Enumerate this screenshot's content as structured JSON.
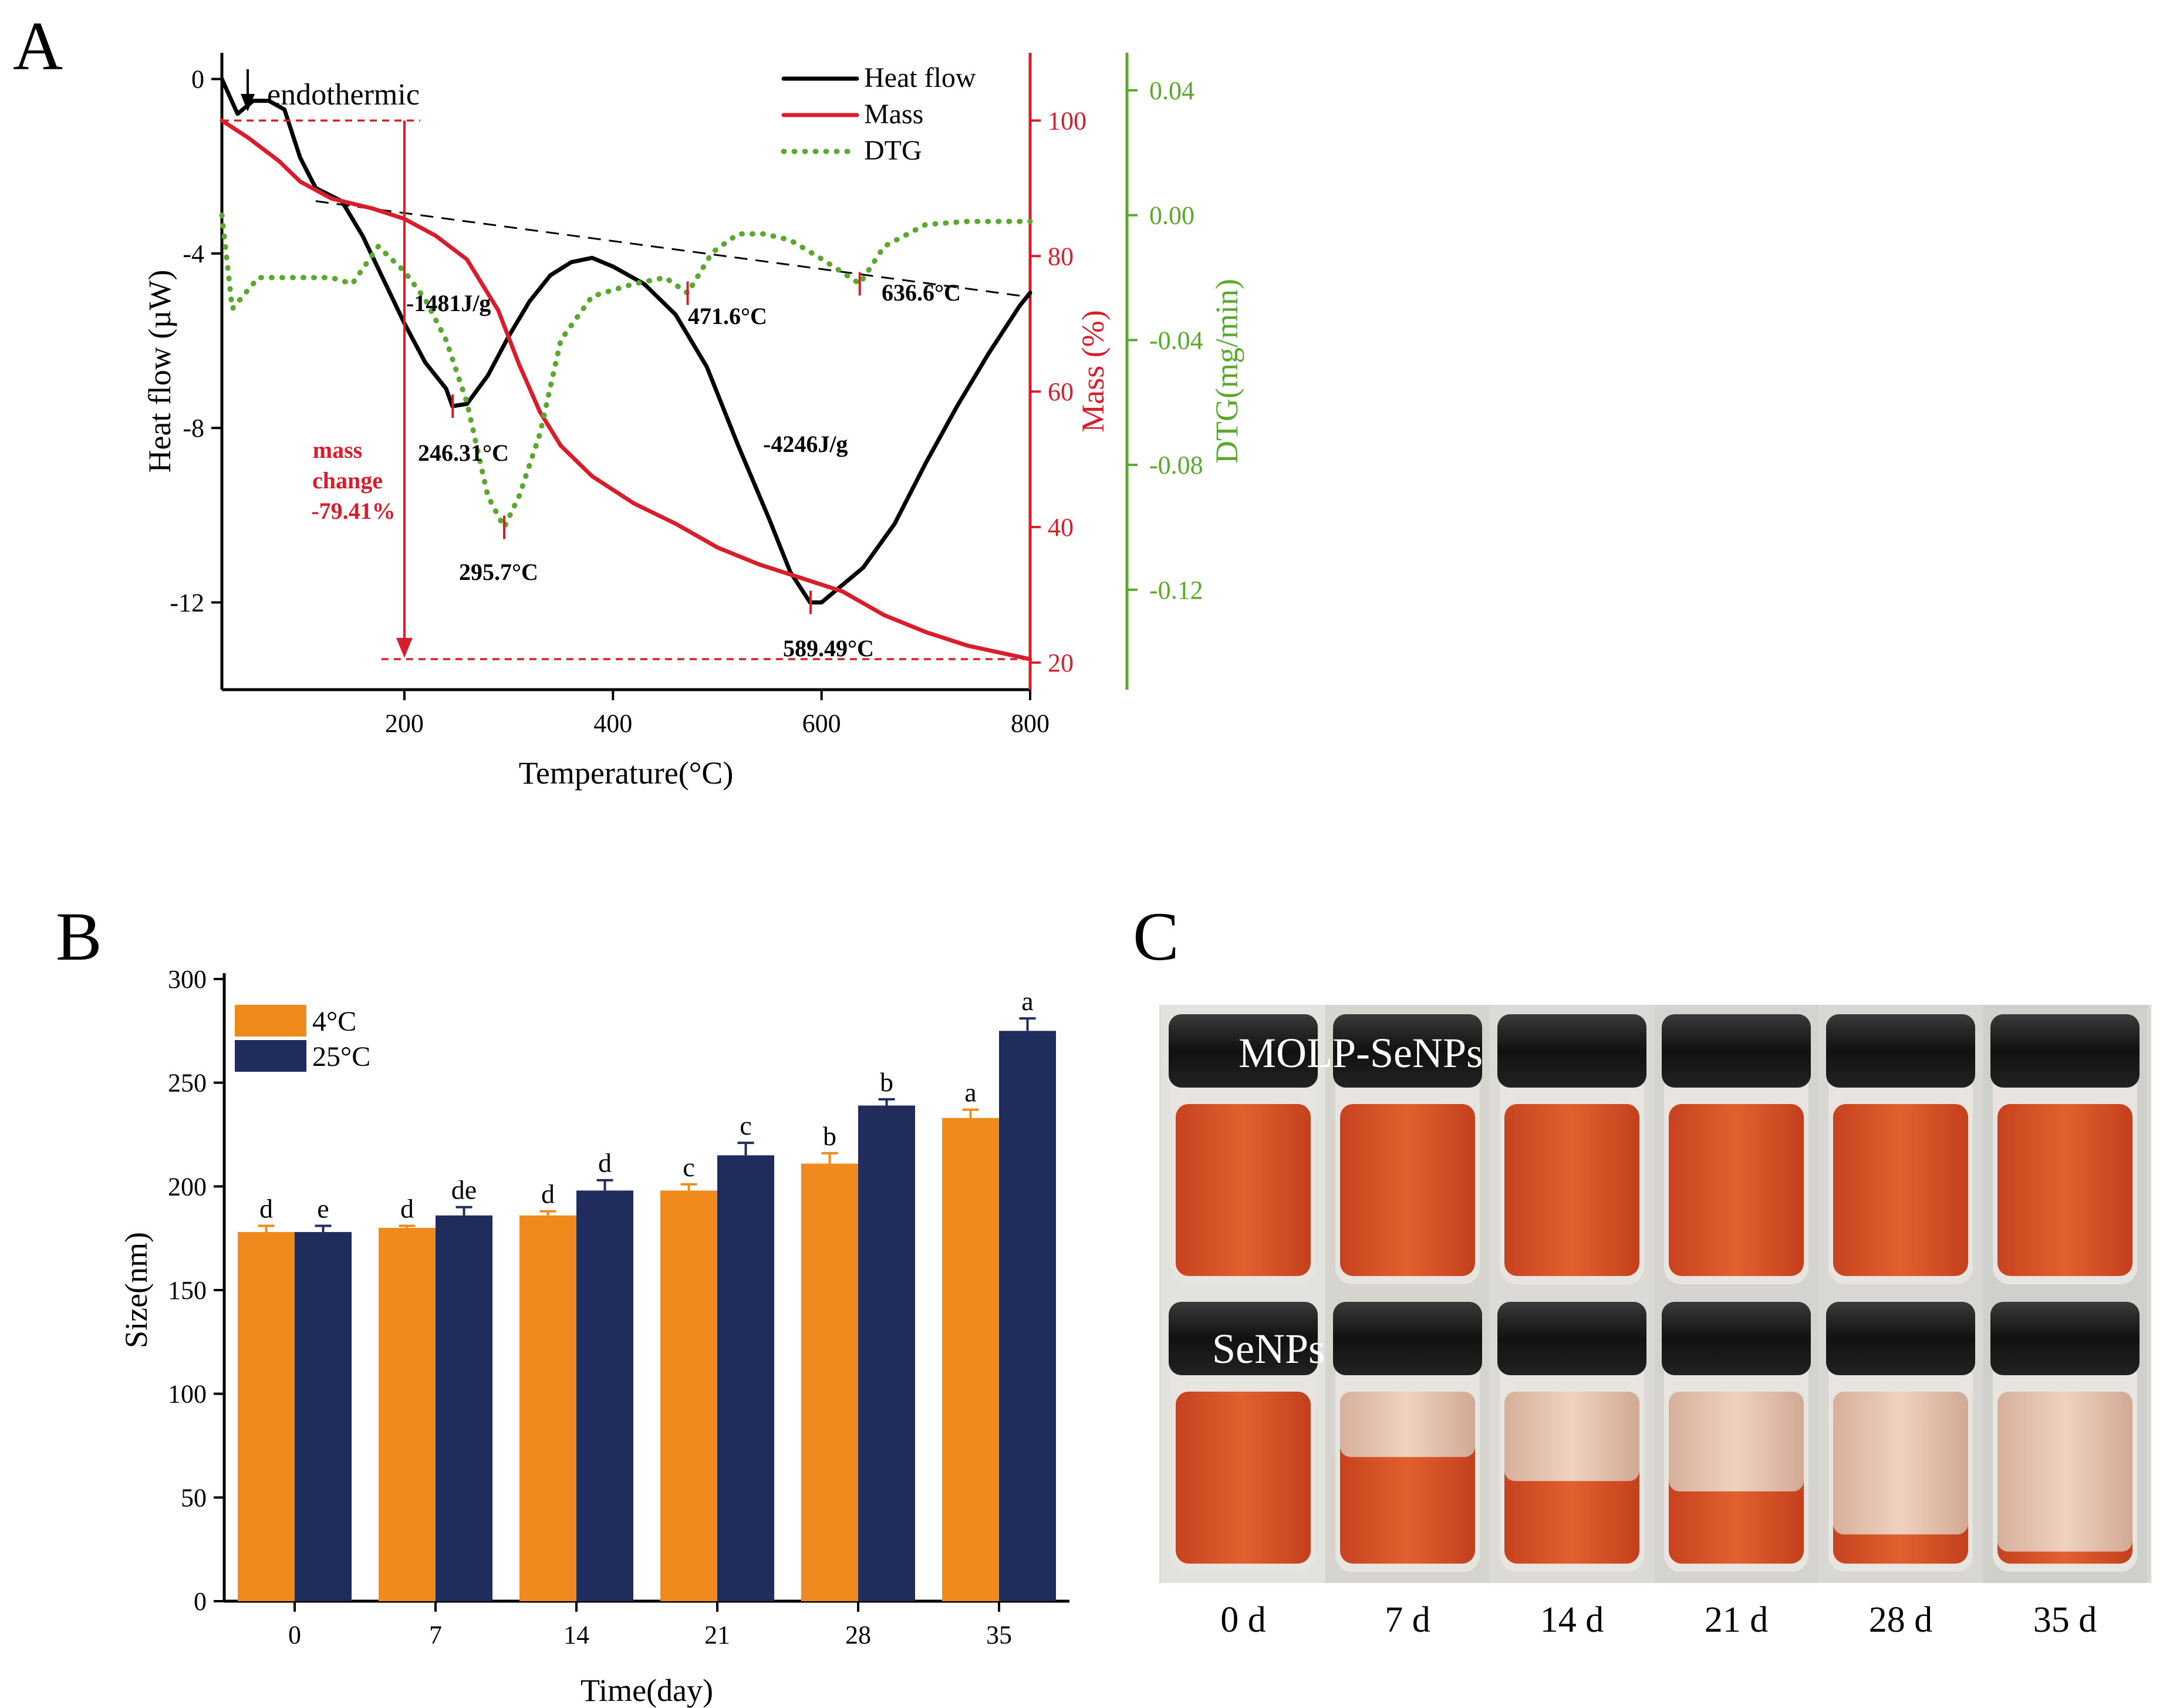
{
  "panel_labels": {
    "a": "A",
    "b": "B",
    "c": "C"
  },
  "chart_data": [
    {
      "type": "line",
      "panel": "A",
      "xlabel": "Temperature(°C)",
      "xlim": [
        25,
        800
      ],
      "xticks": [
        "200",
        "400",
        "600",
        "800"
      ],
      "axes": {
        "heat": {
          "label": "Heat flow (µW)",
          "ylim": [
            -14,
            0.6
          ],
          "ticks": [
            "0",
            "-4",
            "-8",
            "-12"
          ]
        },
        "mass": {
          "label": "Mass  (%)",
          "ylim": [
            16,
            110
          ],
          "ticks": [
            "100",
            "80",
            "60",
            "40",
            "20"
          ]
        },
        "dtg": {
          "label": "DTG(mg/min)",
          "ylim": [
            -0.152,
            0.052
          ],
          "ticks": [
            "0.04",
            "0.00",
            "-0.04",
            "-0.08",
            "-0.12"
          ]
        }
      },
      "series": [
        {
          "name": "Heat flow",
          "axis": "heat",
          "color": "#000000",
          "style": "solid",
          "points": [
            [
              25,
              0.0
            ],
            [
              40,
              -0.8
            ],
            [
              55,
              -0.5
            ],
            [
              70,
              -0.5
            ],
            [
              85,
              -0.7
            ],
            [
              100,
              -1.8
            ],
            [
              115,
              -2.5
            ],
            [
              140,
              -2.8
            ],
            [
              160,
              -3.6
            ],
            [
              180,
              -4.6
            ],
            [
              200,
              -5.6
            ],
            [
              220,
              -6.5
            ],
            [
              240,
              -7.1
            ],
            [
              246,
              -7.5
            ],
            [
              260,
              -7.45
            ],
            [
              280,
              -6.8
            ],
            [
              300,
              -5.9
            ],
            [
              320,
              -5.1
            ],
            [
              340,
              -4.5
            ],
            [
              360,
              -4.2
            ],
            [
              380,
              -4.1
            ],
            [
              400,
              -4.3
            ],
            [
              430,
              -4.7
            ],
            [
              460,
              -5.4
            ],
            [
              490,
              -6.6
            ],
            [
              520,
              -8.4
            ],
            [
              550,
              -10.1
            ],
            [
              570,
              -11.3
            ],
            [
              589,
              -12.0
            ],
            [
              600,
              -12.0
            ],
            [
              615,
              -11.7
            ],
            [
              640,
              -11.2
            ],
            [
              670,
              -10.2
            ],
            [
              700,
              -8.8
            ],
            [
              730,
              -7.5
            ],
            [
              760,
              -6.3
            ],
            [
              790,
              -5.2
            ],
            [
              800,
              -4.9
            ]
          ]
        },
        {
          "name": "Mass",
          "axis": "mass",
          "color": "#d81e2a",
          "style": "solid",
          "points": [
            [
              25,
              100.0
            ],
            [
              50,
              97.5
            ],
            [
              80,
              94.0
            ],
            [
              100,
              91.0
            ],
            [
              130,
              88.5
            ],
            [
              170,
              87.0
            ],
            [
              200,
              85.5
            ],
            [
              230,
              83.0
            ],
            [
              260,
              79.5
            ],
            [
              290,
              72.0
            ],
            [
              310,
              64.0
            ],
            [
              330,
              57.0
            ],
            [
              350,
              52.0
            ],
            [
              380,
              47.5
            ],
            [
              420,
              43.5
            ],
            [
              460,
              40.5
            ],
            [
              500,
              37.0
            ],
            [
              540,
              34.5
            ],
            [
              580,
              32.5
            ],
            [
              620,
              30.5
            ],
            [
              660,
              27.0
            ],
            [
              700,
              24.5
            ],
            [
              740,
              22.5
            ],
            [
              800,
              20.5
            ]
          ]
        },
        {
          "name": "DTG",
          "axis": "dtg",
          "color": "#5aa82e",
          "style": "dotted",
          "points": [
            [
              25,
              0.0
            ],
            [
              35,
              -0.03
            ],
            [
              60,
              -0.02
            ],
            [
              100,
              -0.02
            ],
            [
              130,
              -0.02
            ],
            [
              150,
              -0.022
            ],
            [
              175,
              -0.01
            ],
            [
              200,
              -0.018
            ],
            [
              220,
              -0.027
            ],
            [
              240,
              -0.04
            ],
            [
              260,
              -0.06
            ],
            [
              280,
              -0.09
            ],
            [
              295.7,
              -0.1
            ],
            [
              310,
              -0.09
            ],
            [
              330,
              -0.07
            ],
            [
              350,
              -0.04
            ],
            [
              380,
              -0.026
            ],
            [
              420,
              -0.022
            ],
            [
              450,
              -0.02
            ],
            [
              471.6,
              -0.025
            ],
            [
              495,
              -0.012
            ],
            [
              520,
              -0.006
            ],
            [
              545,
              -0.006
            ],
            [
              570,
              -0.008
            ],
            [
              600,
              -0.014
            ],
            [
              636.6,
              -0.022
            ],
            [
              660,
              -0.01
            ],
            [
              700,
              -0.003
            ],
            [
              740,
              -0.002
            ],
            [
              800,
              -0.002
            ]
          ]
        }
      ],
      "dashed_baseline": [
        [
          115,
          -2.8
        ],
        [
          800,
          -5.0
        ]
      ],
      "legend": [
        "Heat flow",
        "Mass",
        "DTG"
      ],
      "annotations": {
        "endothermic": "endothermic",
        "enthalpy1": "-1481J/g",
        "enthalpy2": "-4246J/g",
        "peak1": "246.31°C",
        "peak2": "295.7°C",
        "peak3": "471.6°C",
        "peak4": "636.6°C",
        "peak5": "589.49°C",
        "mass_change_1": "mass",
        "mass_change_2": "change",
        "mass_change_3": "-79.41%"
      }
    },
    {
      "type": "bar",
      "panel": "B",
      "xlabel": "Time(day)",
      "ylabel": "Size(nm)",
      "ylim": [
        0,
        300
      ],
      "yticks": [
        "0",
        "50",
        "100",
        "150",
        "200",
        "250",
        "300"
      ],
      "categories": [
        "0",
        "7",
        "14",
        "21",
        "28",
        "35"
      ],
      "series": [
        {
          "name": "4°C",
          "color": "#f18a1c",
          "values": [
            178,
            180,
            186,
            198,
            211,
            233
          ],
          "errors": [
            3,
            1,
            2,
            3,
            5,
            4
          ],
          "letters": [
            "d",
            "d",
            "d",
            "c",
            "b",
            "a"
          ]
        },
        {
          "name": "25°C",
          "color": "#1f2c5c",
          "values": [
            178,
            186,
            198,
            215,
            239,
            275
          ],
          "errors": [
            3,
            4,
            5,
            6,
            3,
            6
          ],
          "letters": [
            "e",
            "de",
            "d",
            "c",
            "b",
            "a"
          ]
        }
      ]
    }
  ],
  "photo": {
    "top_label": "MOLP-SeNPs",
    "bottom_label": "SeNPs",
    "days": [
      "0 d",
      "7 d",
      "14 d",
      "21 d",
      "28 d",
      "35 d"
    ],
    "sediment_fraction": [
      0.0,
      0.38,
      0.52,
      0.58,
      0.83,
      0.93
    ]
  }
}
